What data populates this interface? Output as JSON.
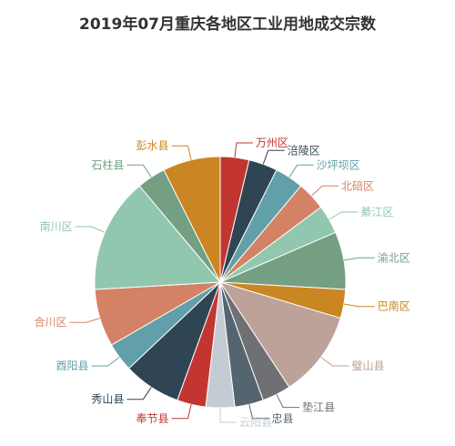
{
  "chart_data": {
    "type": "pie",
    "title": "2019年07月重庆各地区工业用地成交宗数",
    "slices": [
      {
        "label": "万州区",
        "value": 4,
        "color": "#c23531"
      },
      {
        "label": "涪陵区",
        "value": 4,
        "color": "#2f4554"
      },
      {
        "label": "沙坪坝区",
        "value": 4,
        "color": "#61a0a8"
      },
      {
        "label": "北碚区",
        "value": 4,
        "color": "#d48265"
      },
      {
        "label": "綦江区",
        "value": 4,
        "color": "#91c7ae"
      },
      {
        "label": "渝北区",
        "value": 8,
        "color": "#749f83"
      },
      {
        "label": "巴南区",
        "value": 4,
        "color": "#ca8622"
      },
      {
        "label": "璧山县",
        "value": 12,
        "color": "#bda29a"
      },
      {
        "label": "垫江县",
        "value": 4,
        "color": "#6e7074"
      },
      {
        "label": "忠县",
        "value": 4,
        "color": "#546570"
      },
      {
        "label": "云阳县",
        "value": 4,
        "color": "#c4ccd3"
      },
      {
        "label": "奉节县",
        "value": 4,
        "color": "#c23531"
      },
      {
        "label": "秀山县",
        "value": 8,
        "color": "#2f4554"
      },
      {
        "label": "酉阳县",
        "value": 4,
        "color": "#61a0a8"
      },
      {
        "label": "合川区",
        "value": 8,
        "color": "#d48265"
      },
      {
        "label": "南川区",
        "value": 16,
        "color": "#91c7ae"
      },
      {
        "label": "石柱县",
        "value": 4,
        "color": "#749f83"
      },
      {
        "label": "彭水县",
        "value": 8,
        "color": "#ca8622"
      }
    ]
  }
}
